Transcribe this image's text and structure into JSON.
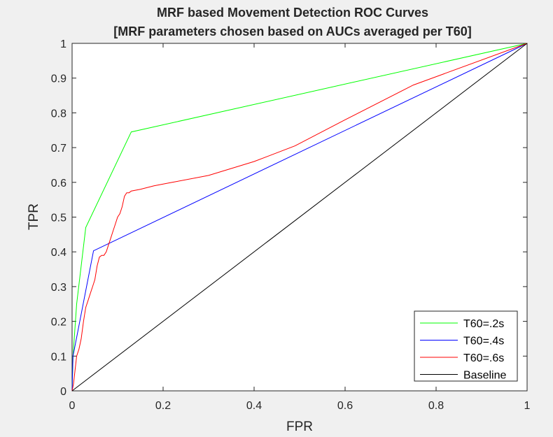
{
  "chart_data": {
    "type": "line",
    "title": [
      "MRF based Movement Detection ROC Curves",
      "[MRF parameters chosen based on AUCs averaged per T60]"
    ],
    "xlabel": "FPR",
    "ylabel": "TPR",
    "xlim": [
      0,
      1
    ],
    "ylim": [
      0,
      1
    ],
    "xticks": [
      0,
      0.2,
      0.4,
      0.6,
      0.8,
      1
    ],
    "xtick_labels": [
      "0",
      "0.2",
      "0.4",
      "0.6",
      "0.8",
      "1"
    ],
    "yticks": [
      0,
      0.1,
      0.2,
      0.3,
      0.4,
      0.5,
      0.6,
      0.7,
      0.8,
      0.9,
      1
    ],
    "ytick_labels": [
      "0",
      "0.1",
      "0.2",
      "0.3",
      "0.4",
      "0.5",
      "0.6",
      "0.7",
      "0.8",
      "0.9",
      "1"
    ],
    "grid": false,
    "legend_position": "bottom-right",
    "series": [
      {
        "name": "T60=.2s",
        "color": "#00ff00",
        "x": [
          0,
          0.002,
          0.01,
          0.03,
          0.13,
          1
        ],
        "y": [
          0,
          0.1,
          0.25,
          0.47,
          0.745,
          1
        ]
      },
      {
        "name": "T60=.4s",
        "color": "#0000ff",
        "x": [
          0,
          0.002,
          0.047,
          1
        ],
        "y": [
          0,
          0.1,
          0.403,
          1
        ]
      },
      {
        "name": "T60=.6s",
        "color": "#ff0000",
        "x": [
          0,
          0.003,
          0.01,
          0.015,
          0.02,
          0.025,
          0.03,
          0.035,
          0.04,
          0.045,
          0.05,
          0.055,
          0.06,
          0.065,
          0.07,
          0.075,
          0.08,
          0.085,
          0.09,
          0.095,
          0.1,
          0.105,
          0.11,
          0.115,
          0.12,
          0.125,
          0.13,
          0.15,
          0.18,
          0.22,
          0.3,
          0.4,
          0.49,
          0.6,
          0.75,
          1
        ],
        "y": [
          0,
          0.02,
          0.1,
          0.12,
          0.15,
          0.2,
          0.24,
          0.26,
          0.28,
          0.3,
          0.32,
          0.36,
          0.385,
          0.39,
          0.39,
          0.4,
          0.42,
          0.44,
          0.46,
          0.48,
          0.5,
          0.51,
          0.53,
          0.56,
          0.57,
          0.57,
          0.575,
          0.58,
          0.59,
          0.6,
          0.62,
          0.66,
          0.705,
          0.78,
          0.88,
          1
        ]
      },
      {
        "name": "Baseline",
        "color": "#000000",
        "x": [
          0,
          1
        ],
        "y": [
          0,
          1
        ]
      }
    ]
  }
}
